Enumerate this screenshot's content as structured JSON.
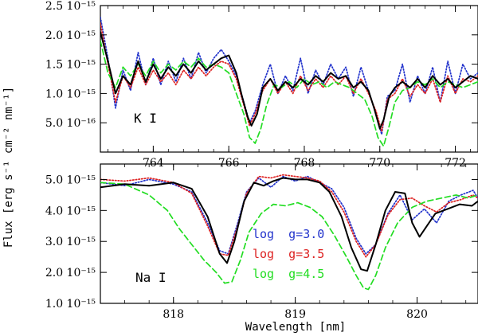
{
  "figure": {
    "ylabel": "Flux [erg s⁻¹ cm⁻² nm⁻¹]",
    "xlabel": "Wavelength [nm]"
  },
  "chart_data": [
    {
      "type": "line",
      "panel_label": "K I",
      "xlim": [
        762.6,
        772.6
      ],
      "ylim": [
        0.0,
        2.5e-15
      ],
      "xticks": [
        764,
        766,
        768,
        770,
        772
      ],
      "yticks": [
        {
          "value": 2.5e-15,
          "label": "2.5 10⁻¹⁵"
        },
        {
          "value": 2e-15,
          "label": "2.0 10⁻¹⁵"
        },
        {
          "value": 1.5e-15,
          "label": "1.5 10⁻¹⁵"
        },
        {
          "value": 1e-15,
          "label": "1.0 10⁻¹⁵"
        },
        {
          "value": 5e-16,
          "label": "5.0 10⁻¹⁶"
        }
      ],
      "series": [
        {
          "style": "solid",
          "color": "#000000",
          "x": [
            762.6,
            762.8,
            763.0,
            763.2,
            763.4,
            763.6,
            763.8,
            764.0,
            764.2,
            764.4,
            764.6,
            764.8,
            765.0,
            765.2,
            765.4,
            765.6,
            765.8,
            766.0,
            766.2,
            766.35,
            766.5,
            766.6,
            766.75,
            766.9,
            767.1,
            767.3,
            767.5,
            767.7,
            767.9,
            768.1,
            768.3,
            768.5,
            768.7,
            768.9,
            769.1,
            769.3,
            769.5,
            769.7,
            769.85,
            770.0,
            770.1,
            770.25,
            770.4,
            770.6,
            770.8,
            771.0,
            771.2,
            771.4,
            771.6,
            771.8,
            772.0,
            772.2,
            772.4,
            772.6
          ],
          "y": [
            2.05e-15,
            1.55e-15,
            1e-15,
            1.3e-15,
            1.15e-15,
            1.55e-15,
            1.2e-15,
            1.5e-15,
            1.25e-15,
            1.45e-15,
            1.3e-15,
            1.5e-15,
            1.35e-15,
            1.55e-15,
            1.4e-15,
            1.5e-15,
            1.6e-15,
            1.65e-15,
            1.35e-15,
            9.5e-16,
            6e-16,
            4.5e-16,
            6.5e-16,
            1.1e-15,
            1.25e-15,
            1.05e-15,
            1.2e-15,
            1.1e-15,
            1.25e-15,
            1.15e-15,
            1.3e-15,
            1.2e-15,
            1.35e-15,
            1.25e-15,
            1.3e-15,
            1.1e-15,
            1.2e-15,
            1.05e-15,
            7.5e-16,
            4e-16,
            5.5e-16,
            9.5e-16,
            1.1e-15,
            1.2e-15,
            1.1e-15,
            1.25e-15,
            1.1e-15,
            1.3e-15,
            1.15e-15,
            1.25e-15,
            1.1e-15,
            1.2e-15,
            1.3e-15,
            1.25e-15
          ]
        },
        {
          "style": "dotted",
          "color": "#2233cc",
          "x": [
            762.6,
            762.8,
            763.0,
            763.2,
            763.4,
            763.6,
            763.8,
            764.0,
            764.2,
            764.4,
            764.6,
            764.8,
            765.0,
            765.2,
            765.4,
            765.6,
            765.8,
            766.0,
            766.2,
            766.4,
            766.55,
            766.7,
            766.9,
            767.1,
            767.3,
            767.5,
            767.7,
            767.9,
            768.1,
            768.3,
            768.5,
            768.7,
            768.9,
            769.1,
            769.3,
            769.5,
            769.7,
            769.9,
            770.05,
            770.2,
            770.4,
            770.6,
            770.8,
            771.0,
            771.2,
            771.4,
            771.6,
            771.8,
            772.0,
            772.2,
            772.4,
            772.6
          ],
          "y": [
            2.3e-15,
            1.6e-15,
            7.5e-16,
            1.4e-15,
            1.05e-15,
            1.7e-15,
            1.15e-15,
            1.6e-15,
            1.15e-15,
            1.55e-15,
            1.2e-15,
            1.6e-15,
            1.25e-15,
            1.7e-15,
            1.35e-15,
            1.6e-15,
            1.75e-15,
            1.55e-15,
            1.3e-15,
            8.5e-16,
            5e-16,
            7e-16,
            1.15e-15,
            1.5e-15,
            1e-15,
            1.3e-15,
            1.05e-15,
            1.6e-15,
            1e-15,
            1.4e-15,
            1.15e-15,
            1.5e-15,
            1.25e-15,
            1.45e-15,
            9.5e-16,
            1.45e-15,
            1.05e-15,
            6.5e-16,
            3e-16,
            9.5e-16,
            1.05e-15,
            1.5e-15,
            8.5e-16,
            1.3e-15,
            1e-15,
            1.45e-15,
            8.5e-16,
            1.55e-15,
            1e-15,
            1.5e-15,
            1.25e-15,
            1.35e-15
          ]
        },
        {
          "style": "dotted",
          "color": "#dd2222",
          "x": [
            762.6,
            762.8,
            763.0,
            763.2,
            763.4,
            763.6,
            763.8,
            764.0,
            764.2,
            764.4,
            764.6,
            764.8,
            765.0,
            765.2,
            765.4,
            765.6,
            765.8,
            766.0,
            766.2,
            766.4,
            766.55,
            766.7,
            766.9,
            767.1,
            767.3,
            767.5,
            767.7,
            767.9,
            768.1,
            768.3,
            768.5,
            768.7,
            768.9,
            769.1,
            769.3,
            769.5,
            769.7,
            769.9,
            770.05,
            770.2,
            770.4,
            770.6,
            770.8,
            771.0,
            771.2,
            771.4,
            771.6,
            771.8,
            772.0,
            772.2,
            772.4,
            772.6
          ],
          "y": [
            2.2e-15,
            1.5e-15,
            8.5e-16,
            1.3e-15,
            1.1e-15,
            1.45e-15,
            1.15e-15,
            1.4e-15,
            1.2e-15,
            1.35e-15,
            1.15e-15,
            1.4e-15,
            1.25e-15,
            1.45e-15,
            1.3e-15,
            1.45e-15,
            1.55e-15,
            1.5e-15,
            1.25e-15,
            8e-16,
            4.5e-16,
            6.5e-16,
            1.05e-15,
            1.25e-15,
            1e-15,
            1.2e-15,
            1e-15,
            1.3e-15,
            1.05e-15,
            1.25e-15,
            1.1e-15,
            1.3e-15,
            1.15e-15,
            1.3e-15,
            1e-15,
            1.25e-15,
            1e-15,
            7e-16,
            3.5e-16,
            9e-16,
            1e-15,
            1.25e-15,
            9.5e-16,
            1.15e-15,
            1e-15,
            1.25e-15,
            8.5e-16,
            1.3e-15,
            1e-15,
            1.25e-15,
            1.2e-15,
            1.3e-15
          ]
        },
        {
          "style": "dashed",
          "color": "#22dd22",
          "x": [
            762.6,
            762.8,
            763.0,
            763.2,
            763.4,
            763.6,
            763.8,
            764.0,
            764.2,
            764.4,
            764.6,
            764.8,
            765.0,
            765.2,
            765.4,
            765.6,
            765.8,
            766.0,
            766.2,
            766.4,
            766.55,
            766.7,
            766.85,
            767.0,
            767.2,
            767.4,
            767.6,
            767.8,
            768.0,
            768.2,
            768.4,
            768.6,
            768.8,
            769.0,
            769.2,
            769.4,
            769.6,
            769.8,
            769.95,
            770.1,
            770.25,
            770.4,
            770.6,
            770.8,
            771.0,
            771.2,
            771.4,
            771.6,
            771.8,
            772.0,
            772.2,
            772.4,
            772.6
          ],
          "y": [
            1.9e-15,
            1.35e-15,
            1.1e-15,
            1.45e-15,
            1.3e-15,
            1.5e-15,
            1.3e-15,
            1.55e-15,
            1.35e-15,
            1.5e-15,
            1.4e-15,
            1.55e-15,
            1.45e-15,
            1.6e-15,
            1.45e-15,
            1.5e-15,
            1.45e-15,
            1.35e-15,
            1e-15,
            6.5e-16,
            2.5e-16,
            1.5e-16,
            4e-16,
            8e-16,
            1.15e-15,
            1.1e-15,
            1.2e-15,
            1.1e-15,
            1.25e-15,
            1.15e-15,
            1.2e-15,
            1.1e-15,
            1.2e-15,
            1.15e-15,
            1.1e-15,
            1e-15,
            9e-16,
            6e-16,
            2.5e-16,
            1e-16,
            4.5e-16,
            8.5e-16,
            1.05e-15,
            1.1e-15,
            1.2e-15,
            1.15e-15,
            1.25e-15,
            1.1e-15,
            1.2e-15,
            1.15e-15,
            1.1e-15,
            1.15e-15,
            1.2e-15
          ]
        }
      ]
    },
    {
      "type": "line",
      "panel_label": "Na I",
      "xlim": [
        817.4,
        820.5
      ],
      "ylim": [
        1e-15,
        5.5e-15
      ],
      "xticks": [
        818,
        819,
        820
      ],
      "yticks": [
        {
          "value": 5e-15,
          "label": "5.0 10⁻¹⁵"
        },
        {
          "value": 4e-15,
          "label": "4.0 10⁻¹⁵"
        },
        {
          "value": 3e-15,
          "label": "3.0 10⁻¹⁵"
        },
        {
          "value": 2e-15,
          "label": "2.0 10⁻¹⁵"
        },
        {
          "value": 1e-15,
          "label": "1.0 10⁻¹⁵"
        }
      ],
      "legend": [
        {
          "label": "log  g=3.0",
          "color": "#2233cc"
        },
        {
          "label": "log  g=3.5",
          "color": "#dd2222"
        },
        {
          "label": "log  g=4.5",
          "color": "#22dd22"
        }
      ],
      "series": [
        {
          "style": "solid",
          "color": "#000000",
          "x": [
            817.4,
            817.6,
            817.8,
            818.0,
            818.15,
            818.28,
            818.38,
            818.44,
            818.5,
            818.58,
            818.66,
            818.74,
            818.82,
            818.9,
            819.0,
            819.1,
            819.2,
            819.28,
            819.38,
            819.46,
            819.54,
            819.59,
            819.66,
            819.74,
            819.82,
            819.9,
            819.96,
            820.02,
            820.08,
            820.15,
            820.25,
            820.35,
            820.45,
            820.5
          ],
          "y": [
            4.75e-15,
            4.85e-15,
            4.8e-15,
            4.9e-15,
            4.7e-15,
            3.8e-15,
            2.6e-15,
            2.3e-15,
            3e-15,
            4.3e-15,
            4.9e-15,
            4.8e-15,
            4.95e-15,
            5.05e-15,
            5e-15,
            5e-15,
            4.9e-15,
            4.6e-15,
            3.8e-15,
            2.8e-15,
            2.1e-15,
            2.05e-15,
            2.9e-15,
            4e-15,
            4.6e-15,
            4.55e-15,
            3.6e-15,
            3.15e-15,
            3.5e-15,
            3.9e-15,
            4.05e-15,
            4.2e-15,
            4.15e-15,
            4.3e-15
          ]
        },
        {
          "style": "dotted",
          "color": "#2233cc",
          "x": [
            817.4,
            817.6,
            817.8,
            818.0,
            818.15,
            818.28,
            818.38,
            818.45,
            818.52,
            818.6,
            818.7,
            818.8,
            818.9,
            819.0,
            819.1,
            819.2,
            819.3,
            819.4,
            819.5,
            819.58,
            819.66,
            819.76,
            819.86,
            819.96,
            820.06,
            820.16,
            820.26,
            820.36,
            820.46,
            820.5
          ],
          "y": [
            4.9e-15,
            4.8e-15,
            5e-15,
            4.85e-15,
            4.6e-15,
            3.6e-15,
            2.7e-15,
            2.6e-15,
            3.5e-15,
            4.6e-15,
            5.05e-15,
            4.75e-15,
            5.1e-15,
            4.95e-15,
            5.1e-15,
            4.9e-15,
            4.7e-15,
            4.1e-15,
            3.1e-15,
            2.6e-15,
            2.9e-15,
            3.9e-15,
            4.5e-15,
            3.7e-15,
            4.05e-15,
            3.6e-15,
            4.3e-15,
            4.5e-15,
            4.65e-15,
            4.4e-15
          ]
        },
        {
          "style": "dotted",
          "color": "#dd2222",
          "x": [
            817.4,
            817.6,
            817.8,
            818.0,
            818.15,
            818.28,
            818.38,
            818.45,
            818.52,
            818.6,
            818.7,
            818.8,
            818.9,
            819.0,
            819.1,
            819.2,
            819.3,
            819.4,
            819.5,
            819.58,
            819.66,
            819.76,
            819.86,
            819.96,
            820.06,
            820.16,
            820.26,
            820.36,
            820.46,
            820.5
          ],
          "y": [
            5e-15,
            4.95e-15,
            5.05e-15,
            4.9e-15,
            4.55e-15,
            3.5e-15,
            2.6e-15,
            2.55e-15,
            3.4e-15,
            4.55e-15,
            5.1e-15,
            5.05e-15,
            5.15e-15,
            5.1e-15,
            5.05e-15,
            4.95e-15,
            4.6e-15,
            3.95e-15,
            3e-15,
            2.5e-15,
            2.9e-15,
            3.85e-15,
            4.35e-15,
            4.4e-15,
            4.15e-15,
            3.95e-15,
            4.25e-15,
            4.35e-15,
            4.5e-15,
            4.4e-15
          ]
        },
        {
          "style": "dashed",
          "color": "#22dd22",
          "x": [
            817.4,
            817.6,
            817.8,
            817.95,
            818.05,
            818.15,
            818.25,
            818.35,
            818.42,
            818.48,
            818.55,
            818.62,
            818.72,
            818.82,
            818.92,
            819.02,
            819.12,
            819.22,
            819.32,
            819.42,
            819.5,
            819.56,
            819.6,
            819.66,
            819.74,
            819.84,
            819.96,
            820.08,
            820.2,
            820.32,
            820.42,
            820.5
          ],
          "y": [
            4.9e-15,
            4.85e-15,
            4.5e-15,
            4e-15,
            3.4e-15,
            2.9e-15,
            2.4e-15,
            2e-15,
            1.65e-15,
            1.7e-15,
            2.4e-15,
            3.3e-15,
            3.9e-15,
            4.2e-15,
            4.15e-15,
            4.25e-15,
            4.1e-15,
            3.8e-15,
            3.2e-15,
            2.5e-15,
            1.9e-15,
            1.5e-15,
            1.45e-15,
            1.9e-15,
            2.8e-15,
            3.6e-15,
            4.1e-15,
            4.3e-15,
            4.4e-15,
            4.5e-15,
            4.4e-15,
            4.5e-15
          ]
        }
      ]
    }
  ]
}
